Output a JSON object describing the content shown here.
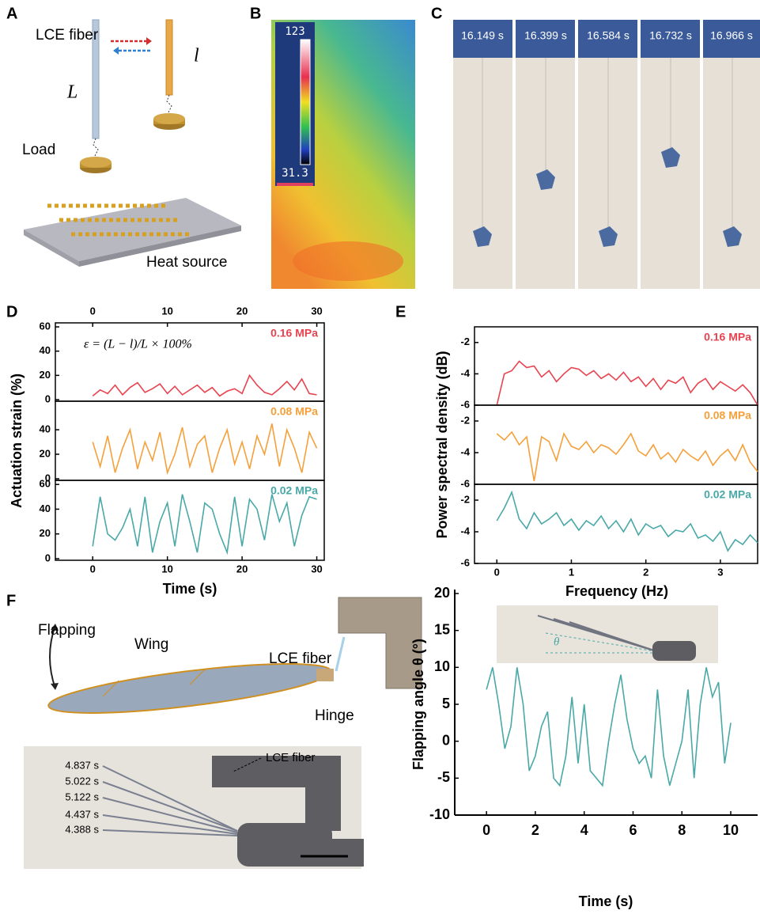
{
  "panel_labels": [
    "A",
    "B",
    "C",
    "D",
    "E",
    "F"
  ],
  "panel_a": {
    "fiber": "LCE fiber",
    "long": "L",
    "short": "l",
    "load": "Load",
    "heat": "Heat source"
  },
  "panel_b": {
    "scale_max": "123",
    "scale_min": "31.3"
  },
  "panel_c": {
    "times": [
      "16.149 s",
      "16.399 s",
      "16.584 s",
      "16.732 s",
      "16.966 s"
    ]
  },
  "panel_f": {
    "flapping": "Flapping",
    "wing": "Wing",
    "fiber": "LCE fiber",
    "hinge": "Hinge",
    "photo_fiber": "LCE fiber",
    "times": [
      "4.837 s",
      "5.022 s",
      "5.122 s",
      "4.437 s",
      "4.388 s"
    ],
    "inset_angle": "θ"
  },
  "chart_data": [
    {
      "type": "line",
      "annotation": "ε = (L − l)/L × 100%",
      "x": [
        0,
        1,
        2,
        3,
        4,
        5,
        6,
        7,
        8,
        9,
        10,
        11,
        12,
        13,
        14,
        15,
        16,
        17,
        18,
        19,
        20,
        21,
        22,
        23,
        24,
        25,
        26,
        27,
        28,
        29,
        30
      ],
      "series": [
        {
          "name": "0.16 MPa",
          "color": "#e8434f",
          "values": [
            3,
            8,
            5,
            12,
            4,
            10,
            14,
            6,
            9,
            13,
            5,
            11,
            4,
            8,
            12,
            6,
            10,
            3,
            7,
            9,
            5,
            20,
            12,
            6,
            4,
            9,
            15,
            8,
            17,
            5,
            4
          ]
        }
      ],
      "xlim": [
        -5,
        31
      ],
      "x2lim": [
        -5,
        31
      ],
      "x2ticks": [
        0,
        10,
        20,
        30
      ],
      "ylim": [
        -1.3,
        63.3
      ],
      "yticks": [
        0,
        20,
        40,
        60
      ]
    },
    {
      "type": "line",
      "y_label": "Actuation strain (%)",
      "x": [
        0,
        1,
        2,
        3,
        4,
        5,
        6,
        7,
        8,
        9,
        10,
        11,
        12,
        13,
        14,
        15,
        16,
        17,
        18,
        19,
        20,
        21,
        22,
        23,
        24,
        25,
        26,
        27,
        28,
        29,
        30
      ],
      "series": [
        {
          "name": "0.08 MPa",
          "color": "#f5a03a",
          "values": [
            30,
            10,
            35,
            5,
            25,
            40,
            8,
            30,
            15,
            38,
            5,
            20,
            42,
            10,
            28,
            35,
            5,
            25,
            40,
            12,
            30,
            8,
            35,
            20,
            45,
            10,
            40,
            25,
            5,
            38,
            25
          ]
        }
      ],
      "xlim": [
        -5,
        31
      ],
      "ylim": [
        -1.3,
        63.3
      ],
      "yticks": [
        0,
        20,
        40
      ]
    },
    {
      "type": "line",
      "x_label": "Time (s)",
      "x": [
        0,
        1,
        2,
        3,
        4,
        5,
        6,
        7,
        8,
        9,
        10,
        11,
        12,
        13,
        14,
        15,
        16,
        17,
        18,
        19,
        20,
        21,
        22,
        23,
        24,
        25,
        26,
        27,
        28,
        29,
        30
      ],
      "series": [
        {
          "name": "0.02 MPa",
          "color": "#4aa8a8",
          "values": [
            10,
            50,
            20,
            15,
            25,
            40,
            10,
            50,
            5,
            30,
            45,
            10,
            52,
            30,
            5,
            45,
            40,
            20,
            5,
            50,
            10,
            48,
            40,
            15,
            52,
            30,
            45,
            10,
            35,
            50,
            48
          ]
        }
      ],
      "xlim": [
        -5,
        31
      ],
      "xticks": [
        0,
        10,
        20,
        30
      ],
      "ylim": [
        -1.3,
        63.3
      ],
      "yticks": [
        0,
        20,
        40,
        60
      ]
    },
    {
      "type": "line",
      "x": [
        0,
        0.1,
        0.2,
        0.3,
        0.4,
        0.5,
        0.6,
        0.7,
        0.8,
        0.9,
        1,
        1.1,
        1.2,
        1.3,
        1.4,
        1.5,
        1.6,
        1.7,
        1.8,
        1.9,
        2,
        2.1,
        2.2,
        2.3,
        2.4,
        2.5,
        2.6,
        2.7,
        2.8,
        2.9,
        3,
        3.1,
        3.2,
        3.3,
        3.4,
        3.5
      ],
      "series": [
        {
          "name": "0.16 MPa",
          "color": "#e8434f",
          "values": [
            -6,
            -4,
            -3.8,
            -3.2,
            -3.6,
            -3.5,
            -4.2,
            -3.8,
            -4.5,
            -4,
            -3.6,
            -3.7,
            -4.1,
            -3.8,
            -4.3,
            -4,
            -4.4,
            -3.9,
            -4.5,
            -4.2,
            -4.8,
            -4.3,
            -5,
            -4.4,
            -4.6,
            -4.2,
            -5.2,
            -4.6,
            -4.3,
            -5,
            -4.5,
            -4.8,
            -5.1,
            -4.7,
            -5.2,
            -6
          ]
        }
      ],
      "xlim": [
        -0.3,
        3.5
      ],
      "ylim": [
        -6,
        -1
      ],
      "yticks": [
        -2,
        -4,
        -6
      ]
    },
    {
      "type": "line",
      "y_label": "Power spectral density (dB)",
      "x": [
        0,
        0.1,
        0.2,
        0.3,
        0.4,
        0.5,
        0.6,
        0.7,
        0.8,
        0.9,
        1,
        1.1,
        1.2,
        1.3,
        1.4,
        1.5,
        1.6,
        1.7,
        1.8,
        1.9,
        2,
        2.1,
        2.2,
        2.3,
        2.4,
        2.5,
        2.6,
        2.7,
        2.8,
        2.9,
        3,
        3.1,
        3.2,
        3.3,
        3.4,
        3.5
      ],
      "series": [
        {
          "name": "0.08 MPa",
          "color": "#f5a03a",
          "values": [
            -2.8,
            -3.2,
            -2.7,
            -3.5,
            -3,
            -5.8,
            -3,
            -3.3,
            -4.5,
            -2.8,
            -3.6,
            -3.8,
            -3.3,
            -4,
            -3.5,
            -3.7,
            -4.1,
            -3.5,
            -2.8,
            -3.9,
            -4.2,
            -3.5,
            -4.4,
            -4,
            -4.6,
            -3.8,
            -4.2,
            -4.5,
            -3.9,
            -4.8,
            -4.2,
            -3.8,
            -4.5,
            -3.5,
            -4.6,
            -5.2
          ]
        }
      ],
      "xlim": [
        -0.3,
        3.5
      ],
      "ylim": [
        -6,
        -1
      ],
      "yticks": [
        -2,
        -4,
        -6
      ]
    },
    {
      "type": "line",
      "x_label": "Frequency (Hz)",
      "x": [
        0,
        0.1,
        0.2,
        0.3,
        0.4,
        0.5,
        0.6,
        0.7,
        0.8,
        0.9,
        1,
        1.1,
        1.2,
        1.3,
        1.4,
        1.5,
        1.6,
        1.7,
        1.8,
        1.9,
        2,
        2.1,
        2.2,
        2.3,
        2.4,
        2.5,
        2.6,
        2.7,
        2.8,
        2.9,
        3,
        3.1,
        3.2,
        3.3,
        3.4,
        3.5
      ],
      "series": [
        {
          "name": "0.02 MPa",
          "color": "#4aa8a8",
          "values": [
            -3.3,
            -2.5,
            -1.5,
            -3.2,
            -3.8,
            -2.8,
            -3.5,
            -3.2,
            -2.8,
            -3.6,
            -3.2,
            -3.9,
            -3.3,
            -3.6,
            -3,
            -3.8,
            -3.3,
            -4,
            -3.2,
            -4.2,
            -3.5,
            -3.8,
            -3.6,
            -4.3,
            -3.9,
            -4,
            -3.5,
            -4.4,
            -4.2,
            -4.6,
            -4,
            -5.2,
            -4.5,
            -4.8,
            -4.2,
            -4.7
          ]
        }
      ],
      "xlim": [
        -0.3,
        3.5
      ],
      "xticks": [
        0,
        1,
        2,
        3
      ],
      "ylim": [
        -6,
        -1
      ],
      "yticks": [
        -2,
        -4,
        -6
      ]
    },
    {
      "type": "line",
      "x_label": "Time (s)",
      "y_label": "Flapping angle θ (°)",
      "color": "#4aa8a8",
      "x": [
        0,
        0.25,
        0.5,
        0.75,
        1,
        1.25,
        1.5,
        1.75,
        2,
        2.25,
        2.5,
        2.75,
        3,
        3.25,
        3.5,
        3.75,
        4,
        4.25,
        4.5,
        4.75,
        5,
        5.25,
        5.5,
        5.75,
        6,
        6.25,
        6.5,
        6.75,
        7,
        7.25,
        7.5,
        7.75,
        8,
        8.25,
        8.5,
        8.75,
        9,
        9.25,
        9.5,
        9.75,
        10
      ],
      "values": [
        7,
        10,
        5,
        -1,
        2,
        10,
        5,
        -4,
        -2,
        2,
        4,
        -5,
        -6,
        -2,
        6,
        -3,
        5,
        -4,
        -5,
        -6,
        0,
        5,
        9,
        3,
        -1,
        -3,
        -2,
        -5,
        7,
        -2,
        -6,
        -3,
        0,
        7,
        -5,
        5,
        10,
        6,
        8,
        -3,
        2.5
      ],
      "xlim": [
        -1.3,
        11.1
      ],
      "xticks": [
        0,
        2,
        4,
        6,
        8,
        10
      ],
      "ylim": [
        -10,
        20
      ],
      "yticks": [
        -10,
        -5,
        0,
        5,
        10,
        15,
        20
      ]
    }
  ]
}
